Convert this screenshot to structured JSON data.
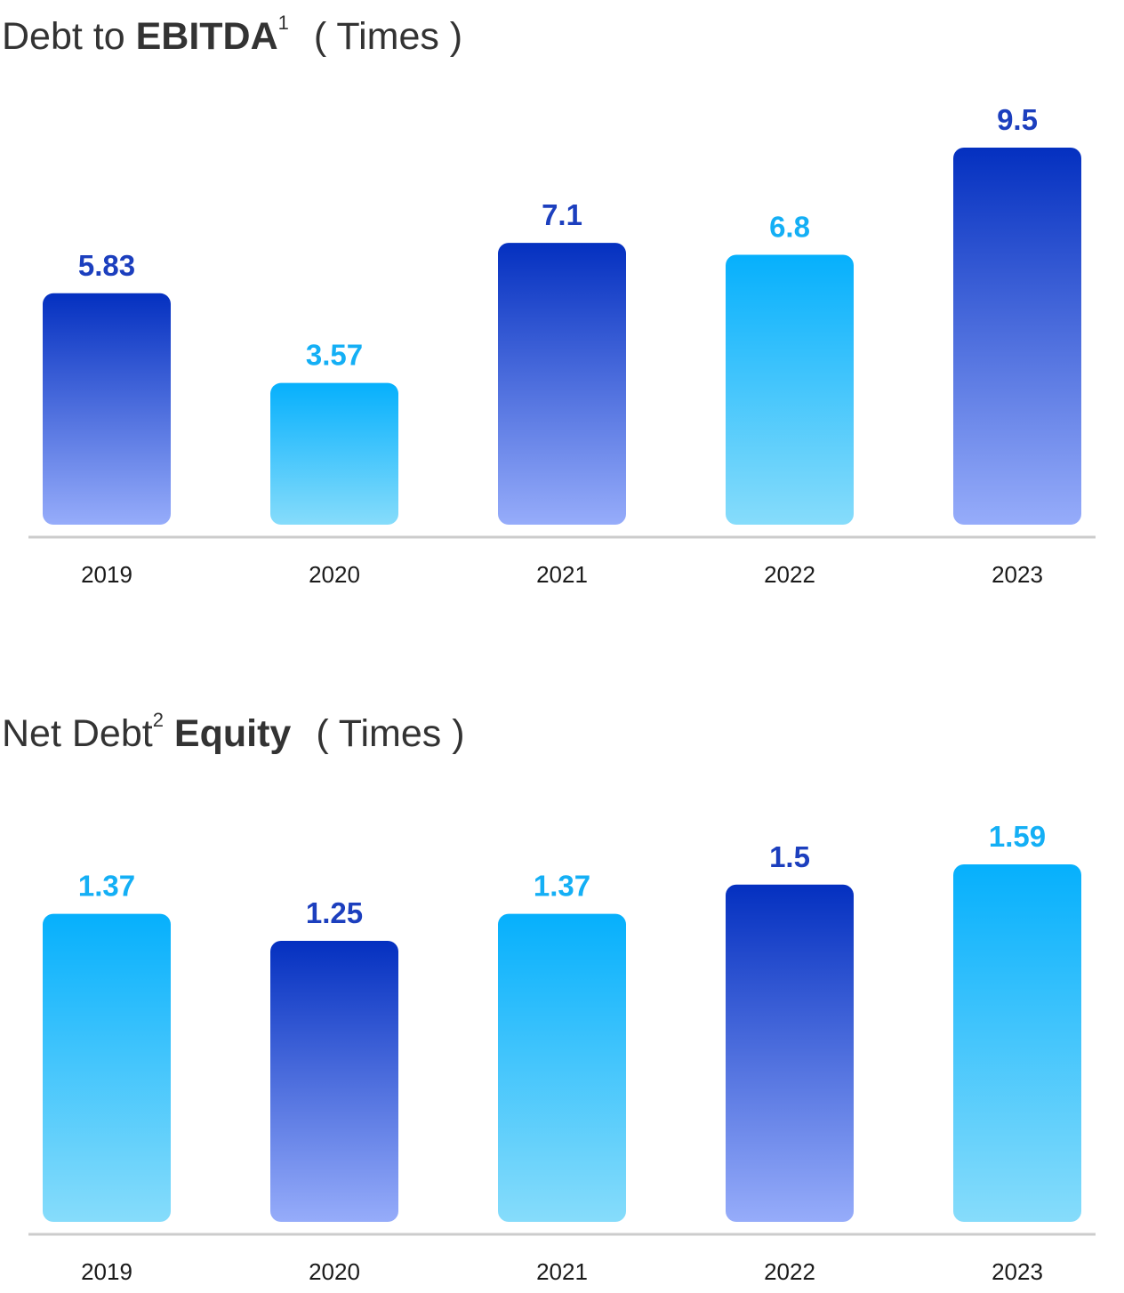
{
  "charts": [
    {
      "title": {
        "prefix": "Debt to ",
        "bold": "EBITDA",
        "sup": "1",
        "unit": "( Times )"
      }
    },
    {
      "title": {
        "prefix": "Net Debt",
        "sup": "2",
        "bold": "Equity",
        "unit": "( Times )"
      }
    }
  ],
  "colors": {
    "navy_top": "#0430C0",
    "navy_bottom": "#96ACFA",
    "sky_top": "#06B0FC",
    "sky_bottom": "#86DCFB",
    "navy_label": "#1C3FBE",
    "sky_label": "#14AFF5",
    "axis": "#CCCCCC",
    "tick_text": "#1a1a1a",
    "title_text": "#333333"
  },
  "chart_data": [
    {
      "type": "bar",
      "title": "Debt to EBITDA1 ( Times )",
      "categories": [
        "2019",
        "2020",
        "2021",
        "2022",
        "2023"
      ],
      "values": [
        5.83,
        3.57,
        7.1,
        6.8,
        9.5
      ],
      "value_labels": [
        "5.83",
        "3.57",
        "7.1",
        "6.8",
        "9.5"
      ],
      "bar_styles": [
        "navy",
        "sky",
        "navy",
        "sky",
        "navy"
      ],
      "ylim": [
        0,
        9.5
      ],
      "grid": false,
      "xlabel": "",
      "ylabel": ""
    },
    {
      "type": "bar",
      "title": "Net Debt2 Equity ( Times )",
      "categories": [
        "2019",
        "2020",
        "2021",
        "2022",
        "2023"
      ],
      "values": [
        1.37,
        1.25,
        1.37,
        1.5,
        1.59
      ],
      "value_labels": [
        "1.37",
        "1.25",
        "1.37",
        "1.5",
        "1.59"
      ],
      "bar_styles": [
        "sky",
        "navy",
        "sky",
        "navy",
        "sky"
      ],
      "ylim": [
        0,
        1.59
      ],
      "grid": false,
      "xlabel": "",
      "ylabel": ""
    }
  ]
}
